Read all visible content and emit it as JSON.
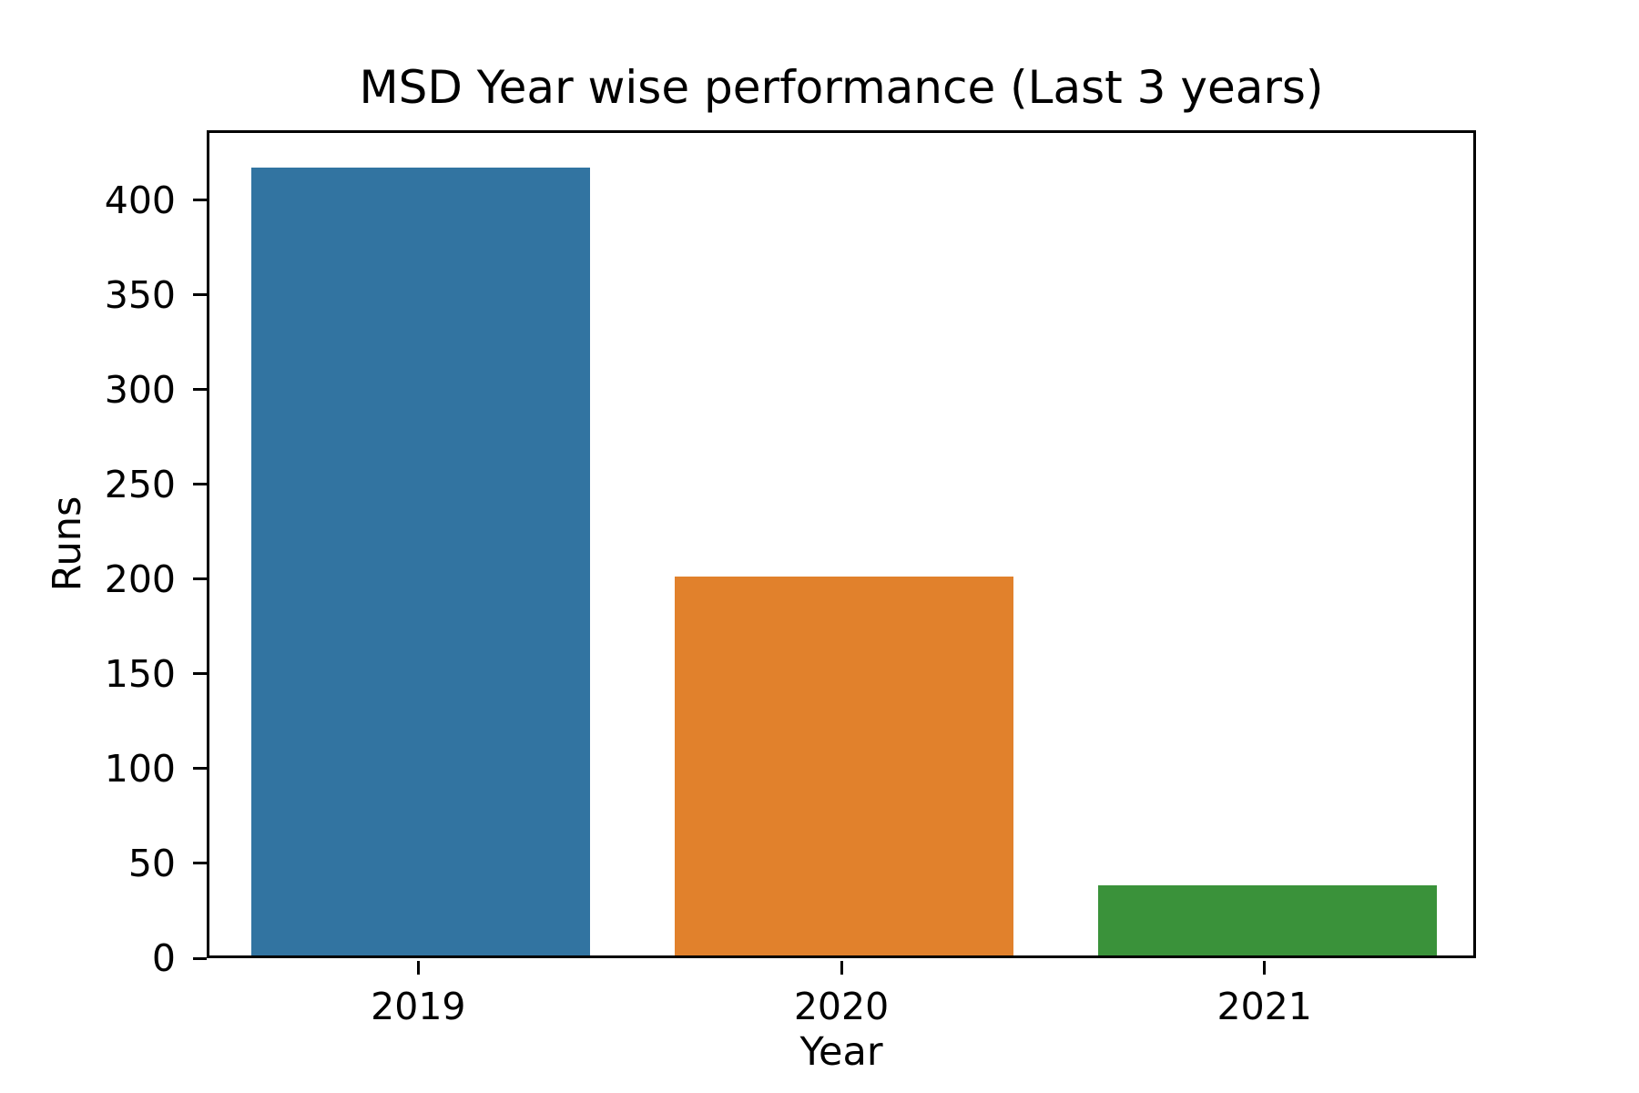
{
  "chart_data": {
    "type": "bar",
    "title": "MSD Year wise performance (Last 3 years)",
    "xlabel": "Year",
    "ylabel": "Runs",
    "categories": [
      "2019",
      "2020",
      "2021"
    ],
    "values": [
      416,
      200,
      37
    ],
    "bar_colors": [
      "#3274a1",
      "#e1812c",
      "#3a923a"
    ],
    "yticks": [
      0,
      50,
      100,
      150,
      200,
      250,
      300,
      350,
      400
    ],
    "ylim": [
      0,
      437
    ],
    "grid": false,
    "legend_position": "none",
    "axis_color": "#000000",
    "background_color": "#ffffff"
  }
}
